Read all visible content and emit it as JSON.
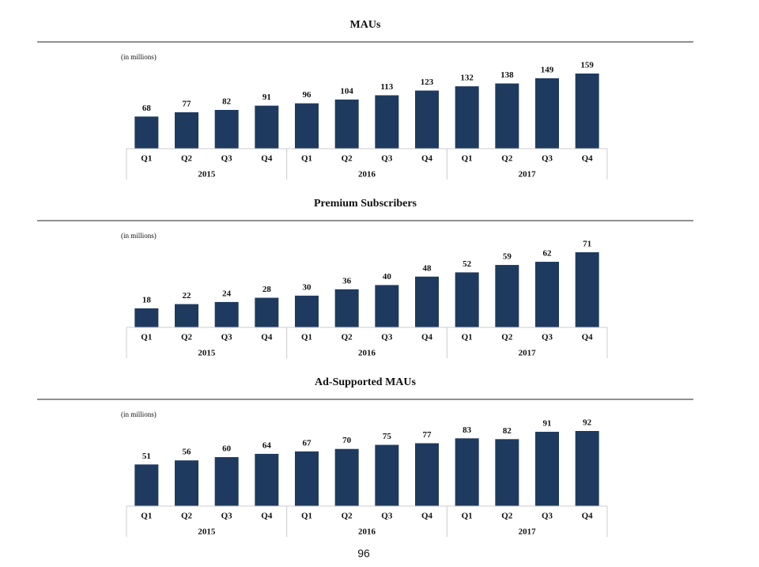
{
  "chart_data": [
    {
      "type": "bar",
      "title": "MAUs",
      "subtitle": "(in millions)",
      "color": "#1f3a5f",
      "categories": [
        "Q1",
        "Q2",
        "Q3",
        "Q4",
        "Q1",
        "Q2",
        "Q3",
        "Q4",
        "Q1",
        "Q2",
        "Q3",
        "Q4"
      ],
      "groups": [
        "2015",
        "2016",
        "2017"
      ],
      "values": [
        68,
        77,
        82,
        91,
        96,
        104,
        113,
        123,
        132,
        138,
        149,
        159
      ]
    },
    {
      "type": "bar",
      "title": "Premium Subscribers",
      "subtitle": "(in millions)",
      "color": "#1f3a5f",
      "categories": [
        "Q1",
        "Q2",
        "Q3",
        "Q4",
        "Q1",
        "Q2",
        "Q3",
        "Q4",
        "Q1",
        "Q2",
        "Q3",
        "Q4"
      ],
      "groups": [
        "2015",
        "2016",
        "2017"
      ],
      "values": [
        18,
        22,
        24,
        28,
        30,
        36,
        40,
        48,
        52,
        59,
        62,
        71
      ]
    },
    {
      "type": "bar",
      "title": "Ad-Supported MAUs",
      "subtitle": "(in millions)",
      "color": "#1f3a5f",
      "categories": [
        "Q1",
        "Q2",
        "Q3",
        "Q4",
        "Q1",
        "Q2",
        "Q3",
        "Q4",
        "Q1",
        "Q2",
        "Q3",
        "Q4"
      ],
      "groups": [
        "2015",
        "2016",
        "2017"
      ],
      "values": [
        51,
        56,
        60,
        64,
        67,
        70,
        75,
        77,
        83,
        82,
        91,
        92
      ]
    }
  ],
  "page_number": "96"
}
